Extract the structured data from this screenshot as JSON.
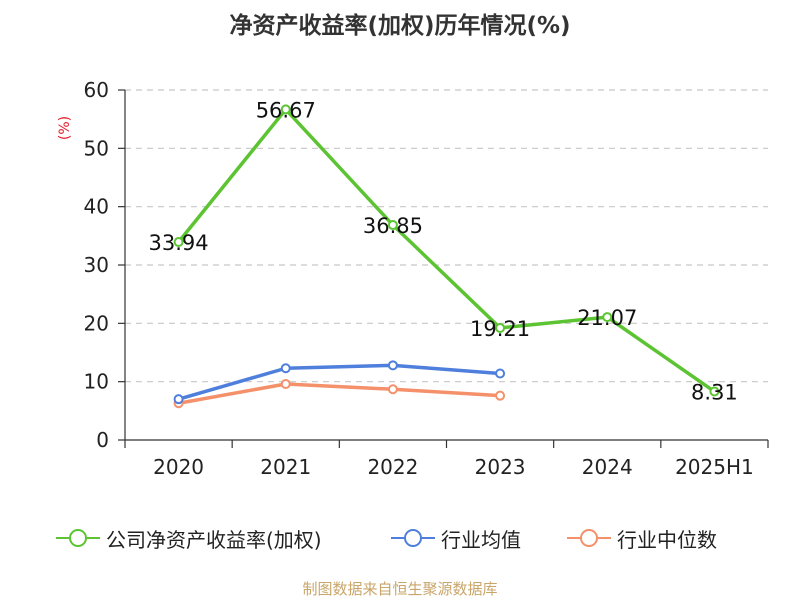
{
  "title": "净资产收益率(加权)历年情况(%)",
  "unit_label": "(%)",
  "source": "制图数据来自恒生聚源数据库",
  "chart_data": {
    "type": "line",
    "title": "净资产收益率(加权)历年情况(%)",
    "ylabel": "(%)",
    "ylim": [
      0,
      60
    ],
    "yticks": [
      0,
      10,
      20,
      30,
      40,
      50,
      60
    ],
    "categories": [
      "2020",
      "2021",
      "2022",
      "2023",
      "2024",
      "2025H1"
    ],
    "grid": true,
    "legend_position": "bottom",
    "series": [
      {
        "name": "公司净资产收益率(加权)",
        "color": "#5cc432",
        "values": [
          33.94,
          56.67,
          36.85,
          19.21,
          21.07,
          8.31
        ],
        "labels": [
          "33.94",
          "56.67",
          "36.85",
          "19.21",
          "21.07",
          "8.31"
        ]
      },
      {
        "name": "行业均值",
        "color": "#4f7fdc",
        "values": [
          7.0,
          12.3,
          12.8,
          11.4,
          null,
          null
        ]
      },
      {
        "name": "行业中位数",
        "color": "#f4906a",
        "values": [
          6.3,
          9.6,
          8.7,
          7.6,
          null,
          null
        ]
      }
    ]
  }
}
